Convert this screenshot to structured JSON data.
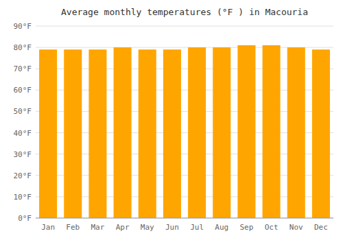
{
  "chart_data": {
    "type": "bar",
    "title": "Average monthly temperatures (°F ) in Macouria",
    "categories": [
      "Jan",
      "Feb",
      "Mar",
      "Apr",
      "May",
      "Jun",
      "Jul",
      "Aug",
      "Sep",
      "Oct",
      "Nov",
      "Dec"
    ],
    "values": [
      79,
      79,
      79,
      80,
      79,
      79,
      80,
      80,
      81,
      81,
      80,
      79
    ],
    "color": "#FFA500",
    "ylim": [
      0,
      90
    ],
    "yticks": [
      {
        "value": 0,
        "label": "0°F"
      },
      {
        "value": 10,
        "label": "10°F"
      },
      {
        "value": 20,
        "label": "20°F"
      },
      {
        "value": 30,
        "label": "30°F"
      },
      {
        "value": 40,
        "label": "40°F"
      },
      {
        "value": 50,
        "label": "50°F"
      },
      {
        "value": 60,
        "label": "60°F"
      },
      {
        "value": 70,
        "label": "70°F"
      },
      {
        "value": 80,
        "label": "80°F"
      },
      {
        "value": 90,
        "label": "90°F"
      }
    ],
    "grid": true
  }
}
